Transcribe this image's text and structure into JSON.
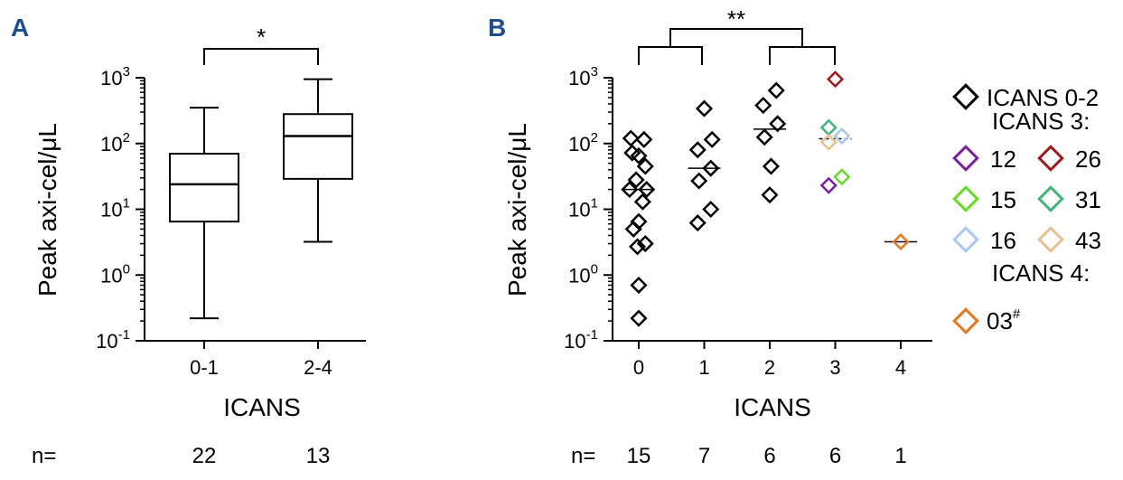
{
  "colors": {
    "axis": "#000000",
    "panel_letter": "#1f4e8c",
    "icans_0_2": "#000000",
    "p12": "#7a1fa2",
    "p26": "#a3161b",
    "p15": "#66dd22",
    "p31": "#3fb57a",
    "p16": "#a8c8f0",
    "p43": "#e8c090",
    "p03": "#e8761c"
  },
  "chart_data": [
    {
      "panel": "A",
      "type": "box",
      "ylabel": "Peak axi-cel/μL",
      "xlabel": "ICANS",
      "yscale": "log",
      "ylim": [
        0.1,
        1000
      ],
      "ytick_labels": [
        {
          "base": "10",
          "exp": "3"
        },
        {
          "base": "10",
          "exp": "2"
        },
        {
          "base": "10",
          "exp": "1"
        },
        {
          "base": "10",
          "exp": "0"
        },
        {
          "base": "10",
          "exp": "-1"
        }
      ],
      "categories": [
        "0-1",
        "2-4"
      ],
      "boxes": [
        {
          "min": 0.22,
          "q1": 6.5,
          "median": 24,
          "q3": 70,
          "max": 350
        },
        {
          "min": 3.2,
          "q1": 29,
          "median": 130,
          "q3": 280,
          "max": 950
        }
      ],
      "significance": "*",
      "n_label": "n=",
      "n_values": [
        "22",
        "13"
      ]
    },
    {
      "panel": "B",
      "type": "scatter",
      "ylabel": "Peak axi-cel/μL",
      "xlabel": "ICANS",
      "yscale": "log",
      "ylim": [
        0.1,
        1000
      ],
      "ytick_labels": [
        {
          "base": "10",
          "exp": "3"
        },
        {
          "base": "10",
          "exp": "2"
        },
        {
          "base": "10",
          "exp": "1"
        },
        {
          "base": "10",
          "exp": "0"
        },
        {
          "base": "10",
          "exp": "-1"
        }
      ],
      "categories": [
        "0",
        "1",
        "2",
        "3",
        "4"
      ],
      "points": [
        {
          "x": 0,
          "dx": -0.12,
          "y": 120,
          "group": "ICANS 0-2"
        },
        {
          "x": 0,
          "dx": 0.08,
          "y": 115,
          "group": "ICANS 0-2"
        },
        {
          "x": 0,
          "dx": -0.1,
          "y": 72,
          "group": "ICANS 0-2"
        },
        {
          "x": 0,
          "dx": 0.0,
          "y": 65,
          "group": "ICANS 0-2"
        },
        {
          "x": 0,
          "dx": 0.1,
          "y": 45,
          "group": "ICANS 0-2"
        },
        {
          "x": 0,
          "dx": -0.04,
          "y": 28,
          "group": "ICANS 0-2"
        },
        {
          "x": 0,
          "dx": -0.14,
          "y": 20,
          "group": "ICANS 0-2"
        },
        {
          "x": 0,
          "dx": 0.12,
          "y": 20,
          "group": "ICANS 0-2"
        },
        {
          "x": 0,
          "dx": 0.06,
          "y": 13,
          "group": "ICANS 0-2"
        },
        {
          "x": 0,
          "dx": 0.0,
          "y": 6.5,
          "group": "ICANS 0-2"
        },
        {
          "x": 0,
          "dx": -0.08,
          "y": 5,
          "group": "ICANS 0-2"
        },
        {
          "x": 0,
          "dx": 0.1,
          "y": 3,
          "group": "ICANS 0-2"
        },
        {
          "x": 0,
          "dx": -0.02,
          "y": 2.7,
          "group": "ICANS 0-2"
        },
        {
          "x": 0,
          "dx": 0.0,
          "y": 0.7,
          "group": "ICANS 0-2"
        },
        {
          "x": 0,
          "dx": 0.0,
          "y": 0.22,
          "group": "ICANS 0-2"
        },
        {
          "x": 1,
          "dx": 0.0,
          "y": 340,
          "group": "ICANS 0-2"
        },
        {
          "x": 1,
          "dx": 0.12,
          "y": 115,
          "group": "ICANS 0-2"
        },
        {
          "x": 1,
          "dx": -0.1,
          "y": 80,
          "group": "ICANS 0-2"
        },
        {
          "x": 1,
          "dx": 0.1,
          "y": 42,
          "group": "ICANS 0-2"
        },
        {
          "x": 1,
          "dx": -0.08,
          "y": 27,
          "group": "ICANS 0-2"
        },
        {
          "x": 1,
          "dx": 0.1,
          "y": 10,
          "group": "ICANS 0-2"
        },
        {
          "x": 1,
          "dx": -0.1,
          "y": 6.2,
          "group": "ICANS 0-2"
        },
        {
          "x": 2,
          "dx": 0.1,
          "y": 640,
          "group": "ICANS 0-2"
        },
        {
          "x": 2,
          "dx": -0.1,
          "y": 380,
          "group": "ICANS 0-2"
        },
        {
          "x": 2,
          "dx": 0.12,
          "y": 200,
          "group": "ICANS 0-2"
        },
        {
          "x": 2,
          "dx": -0.08,
          "y": 125,
          "group": "ICANS 0-2"
        },
        {
          "x": 2,
          "dx": 0.02,
          "y": 45,
          "group": "ICANS 0-2"
        },
        {
          "x": 2,
          "dx": 0.0,
          "y": 16.5,
          "group": "ICANS 0-2"
        },
        {
          "x": 3,
          "dx": 0.0,
          "y": 950,
          "group": "26"
        },
        {
          "x": 3,
          "dx": -0.1,
          "y": 175,
          "group": "31"
        },
        {
          "x": 3,
          "dx": 0.1,
          "y": 130,
          "group": "16"
        },
        {
          "x": 3,
          "dx": -0.1,
          "y": 105,
          "group": "43"
        },
        {
          "x": 3,
          "dx": 0.1,
          "y": 31,
          "group": "15"
        },
        {
          "x": 3,
          "dx": -0.1,
          "y": 23,
          "group": "12"
        },
        {
          "x": 4,
          "dx": 0.0,
          "y": 3.2,
          "group": "03"
        }
      ],
      "medians": [
        {
          "x": 0,
          "y": 20,
          "style": "solid"
        },
        {
          "x": 1,
          "y": 42,
          "style": "solid"
        },
        {
          "x": 2,
          "y": 165,
          "style": "solid"
        },
        {
          "x": 3,
          "y": 118,
          "style": "dashed"
        },
        {
          "x": 4,
          "y": 3.2,
          "style": "solid"
        }
      ],
      "significance": "**",
      "n_label": "n=",
      "n_values": [
        "15",
        "7",
        "6",
        "6",
        "1"
      ],
      "legend": {
        "header_0_2": "ICANS 0-2",
        "header_3": "ICANS 3:",
        "header_4": "ICANS 4:",
        "items_3": [
          {
            "label": "12",
            "color": "#7a1fa2"
          },
          {
            "label": "26",
            "color": "#a3161b"
          },
          {
            "label": "15",
            "color": "#66dd22"
          },
          {
            "label": "31",
            "color": "#3fb57a"
          },
          {
            "label": "16",
            "color": "#a8c8f0"
          },
          {
            "label": "43",
            "color": "#e8c090"
          }
        ],
        "item_4": {
          "label": "03",
          "sup": "#",
          "color": "#e8761c"
        }
      }
    }
  ]
}
